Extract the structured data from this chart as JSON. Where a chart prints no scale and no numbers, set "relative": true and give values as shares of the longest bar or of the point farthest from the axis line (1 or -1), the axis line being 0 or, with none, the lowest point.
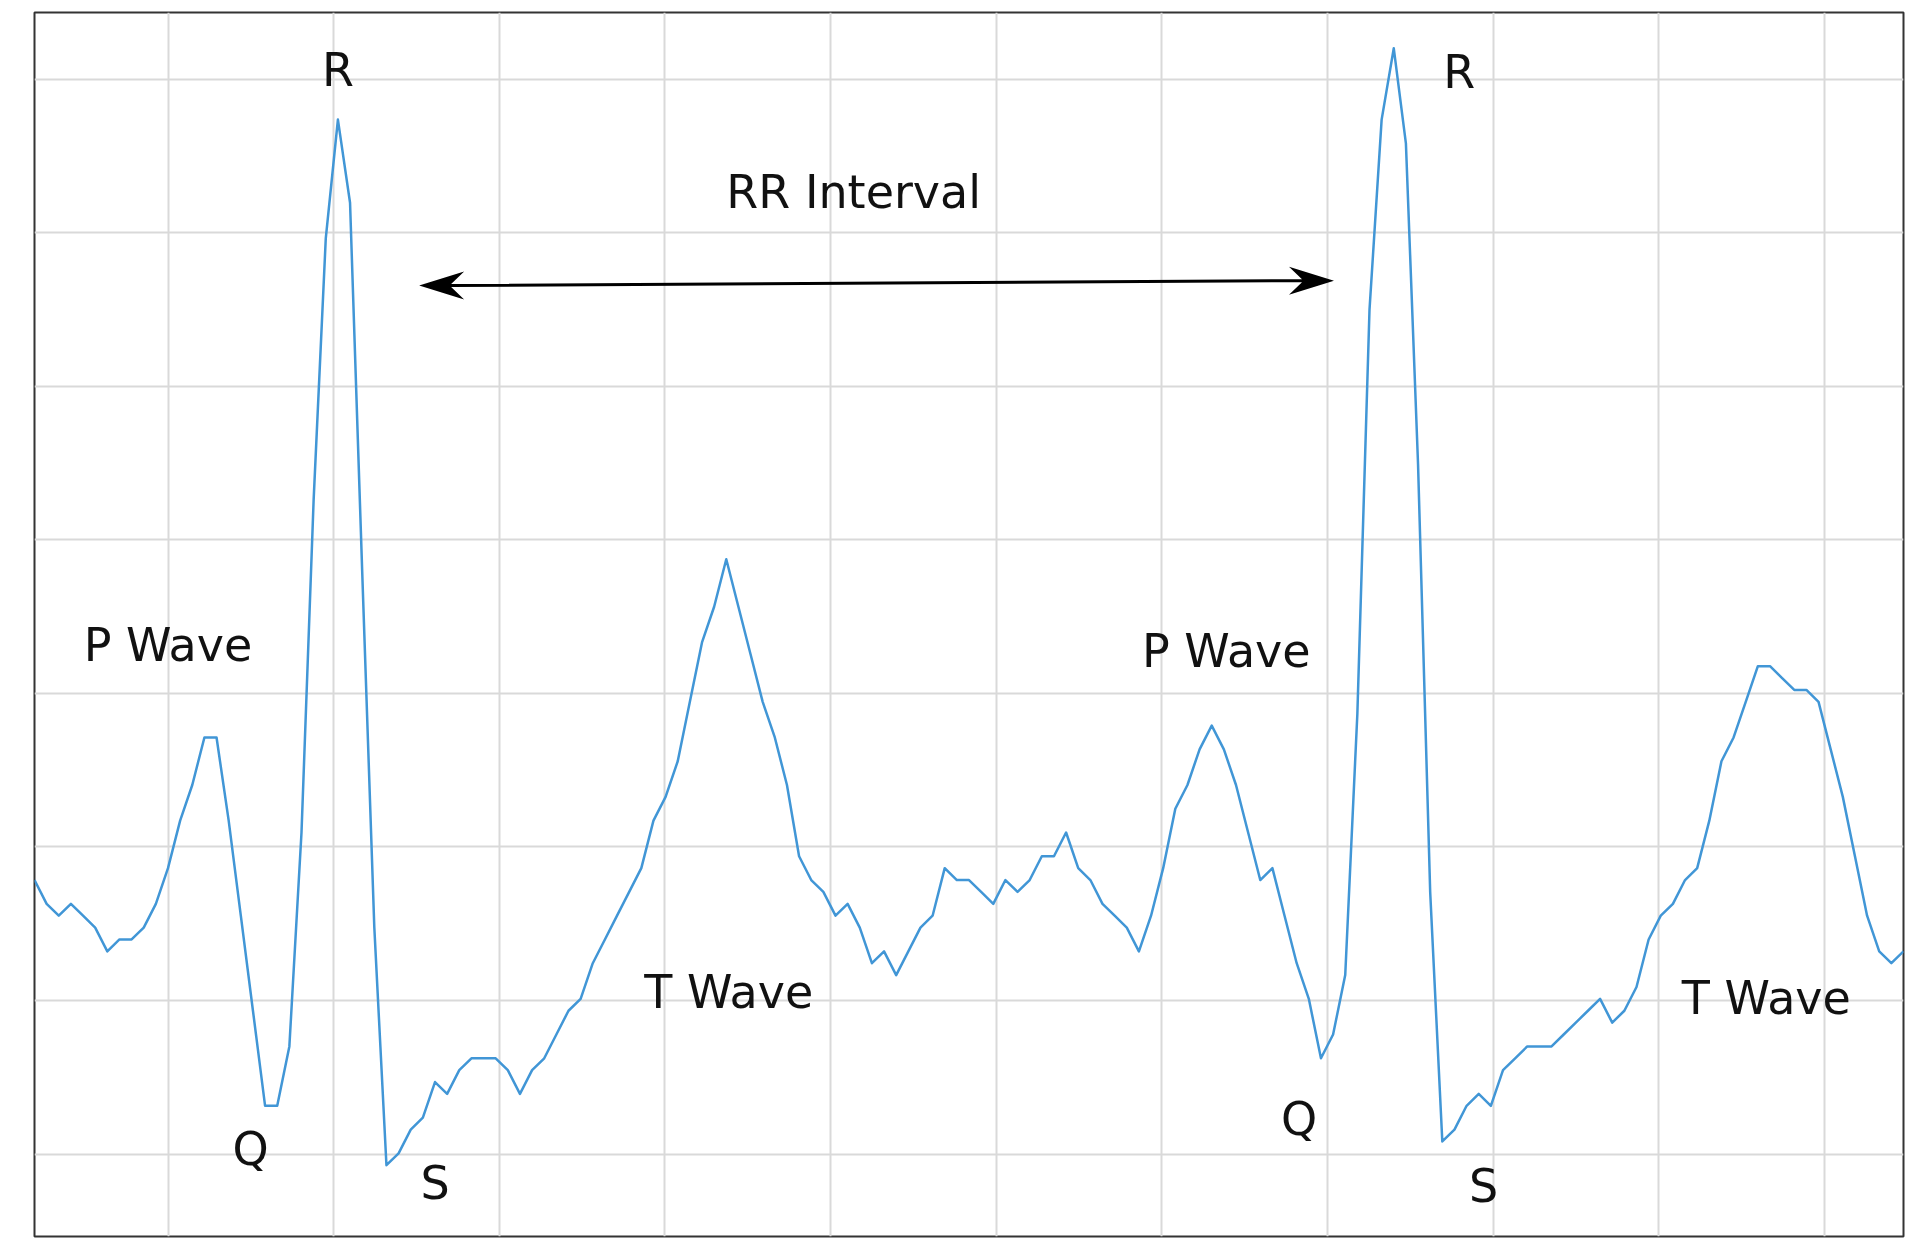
{
  "chart_data": {
    "type": "line",
    "relative": true,
    "grid": true,
    "categories": [
      null,
      null,
      null,
      null,
      null,
      null,
      null,
      null,
      null,
      null,
      null,
      null,
      null,
      null,
      null,
      null,
      null,
      null,
      null,
      null,
      null,
      null,
      null,
      null,
      null,
      null,
      null,
      null,
      null,
      null,
      null,
      null,
      null,
      null,
      null,
      null,
      null,
      null,
      null,
      null,
      null,
      null,
      null,
      null,
      null,
      null,
      null,
      null,
      null,
      null,
      null,
      null,
      null,
      null,
      null,
      null,
      null,
      null,
      null,
      null,
      null,
      null,
      null,
      null,
      null,
      null,
      null,
      null,
      null,
      null,
      null,
      null,
      null,
      null,
      null,
      null,
      null,
      null,
      null,
      null,
      null,
      null,
      null,
      null,
      null,
      null,
      null,
      null,
      null,
      null,
      null,
      null,
      null,
      null,
      null,
      null,
      null,
      null,
      null,
      null,
      null,
      null,
      null,
      null,
      null,
      null,
      null,
      null,
      null,
      null,
      null,
      null,
      null,
      null,
      null,
      null,
      null,
      null,
      null,
      null,
      null,
      null,
      null,
      null,
      null,
      null,
      null,
      null,
      null,
      null,
      null,
      null,
      null,
      null,
      null,
      null,
      null,
      null,
      null,
      null,
      null,
      null,
      null,
      null,
      null,
      null,
      null,
      null,
      null,
      null,
      null,
      null,
      null,
      null,
      null
    ],
    "series": [
      {
        "color": "#4196d6",
        "values": [
          0.3,
          0.28,
          0.27,
          0.28,
          0.27,
          0.26,
          0.24,
          0.25,
          0.25,
          0.26,
          0.28,
          0.31,
          0.35,
          0.38,
          0.42,
          0.42,
          0.35,
          0.27,
          0.19,
          0.11,
          0.11,
          0.16,
          0.34,
          0.62,
          0.84,
          0.94,
          0.87,
          0.56,
          0.26,
          0.06,
          0.07,
          0.09,
          0.1,
          0.13,
          0.12,
          0.14,
          0.15,
          0.15,
          0.15,
          0.14,
          0.12,
          0.14,
          0.15,
          0.17,
          0.19,
          0.2,
          0.23,
          0.25,
          0.27,
          0.29,
          0.31,
          0.35,
          0.37,
          0.4,
          0.45,
          0.5,
          0.53,
          0.57,
          0.53,
          0.49,
          0.45,
          0.42,
          0.38,
          0.32,
          0.3,
          0.29,
          0.27,
          0.28,
          0.26,
          0.23,
          0.24,
          0.22,
          0.24,
          0.26,
          0.27,
          0.31,
          0.3,
          0.3,
          0.29,
          0.28,
          0.3,
          0.29,
          0.3,
          0.32,
          0.32,
          0.34,
          0.31,
          0.3,
          0.28,
          0.27,
          0.26,
          0.24,
          0.27,
          0.31,
          0.36,
          0.38,
          0.41,
          0.43,
          0.41,
          0.38,
          0.34,
          0.3,
          0.31,
          0.27,
          0.23,
          0.2,
          0.15,
          0.17,
          0.22,
          0.44,
          0.78,
          0.94,
          1.0,
          0.92,
          0.65,
          0.29,
          0.08,
          0.09,
          0.11,
          0.12,
          0.11,
          0.14,
          0.15,
          0.16,
          0.16,
          0.16,
          0.17,
          0.18,
          0.19,
          0.2,
          0.18,
          0.19,
          0.21,
          0.25,
          0.27,
          0.28,
          0.3,
          0.31,
          0.35,
          0.4,
          0.42,
          0.45,
          0.48,
          0.48,
          0.47,
          0.46,
          0.46,
          0.45,
          0.41,
          0.37,
          0.32,
          0.27,
          0.24,
          0.23,
          0.24
        ]
      }
    ],
    "annotations": [
      "R",
      "R",
      "RR Interval",
      "P Wave",
      "P Wave",
      "Q",
      "Q",
      "S",
      "S",
      "T Wave",
      "T Wave"
    ]
  }
}
